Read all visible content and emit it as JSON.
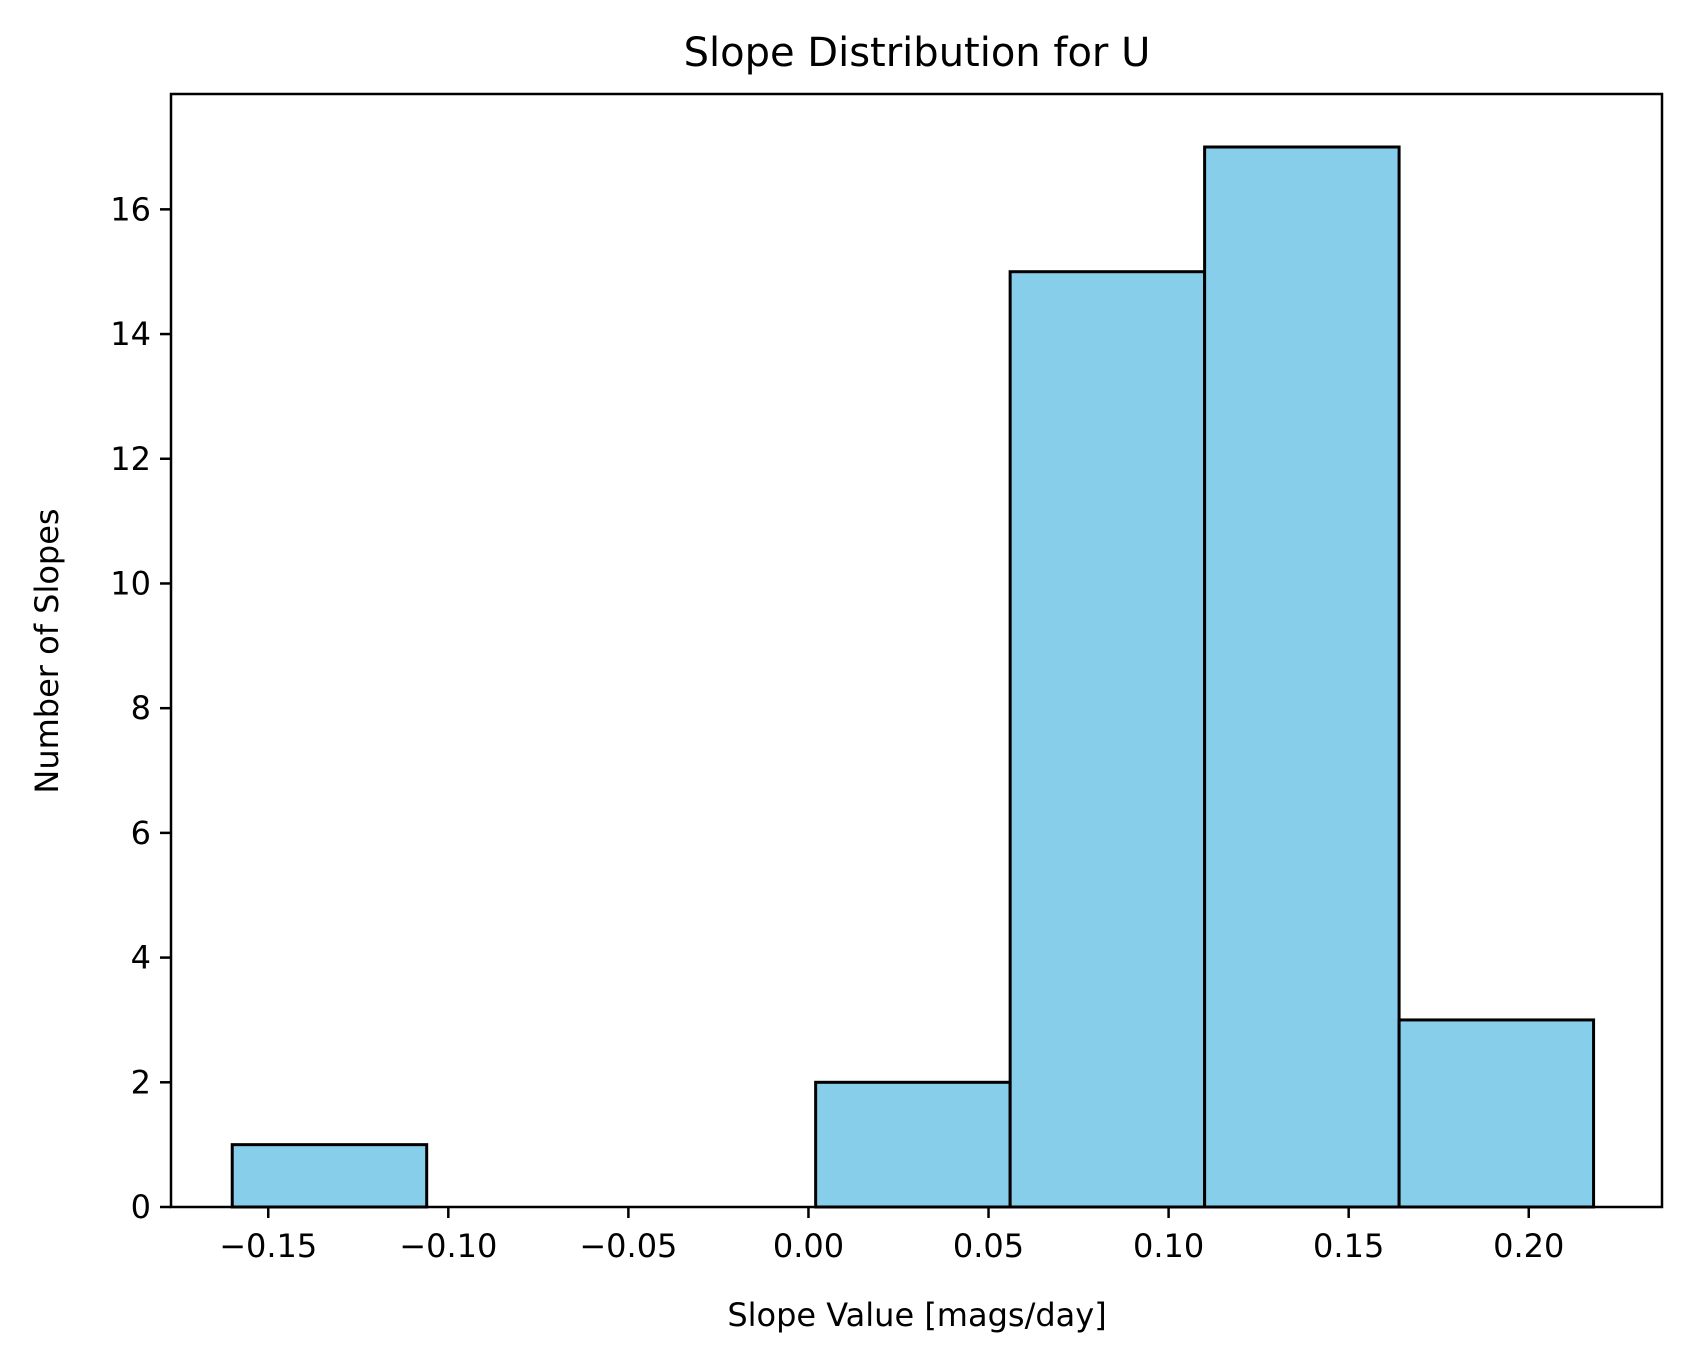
{
  "chart_data": {
    "type": "bar",
    "title": "Slope Distribution for U",
    "xlabel": "Slope Value [mags/day]",
    "ylabel": "Number of Slopes",
    "bin_edges": [
      -0.16,
      -0.106,
      -0.052,
      0.002,
      0.056,
      0.11,
      0.164,
      0.218
    ],
    "values": [
      1,
      0,
      0,
      2,
      15,
      17,
      3
    ],
    "xlim": [
      -0.177,
      0.237
    ],
    "ylim": [
      0,
      17.85
    ],
    "xticks": [
      -0.15,
      -0.1,
      -0.05,
      0.0,
      0.05,
      0.1,
      0.15,
      0.2
    ],
    "xtick_labels": [
      "−0.15",
      "−0.10",
      "−0.05",
      "0.00",
      "0.05",
      "0.10",
      "0.15",
      "0.20"
    ],
    "yticks": [
      0,
      2,
      4,
      6,
      8,
      10,
      12,
      14,
      16
    ],
    "ytick_labels": [
      "0",
      "2",
      "4",
      "6",
      "8",
      "10",
      "12",
      "14",
      "16"
    ],
    "bar_color": "#87ceeb",
    "edge_color": "#000000",
    "grid": false,
    "legend": "none"
  }
}
